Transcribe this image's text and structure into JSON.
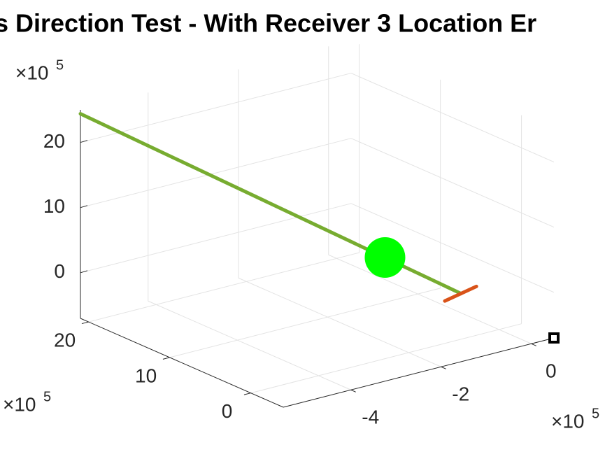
{
  "chart_data": {
    "type": "line3d",
    "title": "s Direction Test - With Receiver 3 Location Er",
    "xlim": [
      -5.5,
      0.5
    ],
    "xticks": [
      -4,
      -2,
      0
    ],
    "ylim": [
      -4,
      21
    ],
    "yticks": [
      0,
      10,
      20
    ],
    "zlim": [
      -7,
      25
    ],
    "zticks": [
      0,
      10,
      20
    ],
    "x_multiplier": {
      "base": "×10",
      "power": "5"
    },
    "y_multiplier": {
      "base": "×10",
      "power": "5"
    },
    "z_multiplier": {
      "base": "×10",
      "power": "5"
    },
    "grid": true,
    "series": [
      {
        "color": "#77ac30",
        "marker": "none",
        "x": [
          -5.5,
          -0.84
        ],
        "y": [
          21,
          0
        ],
        "z": [
          24.4,
          0
        ]
      },
      {
        "color": "#d95319",
        "marker": "none",
        "x": [
          -1.2,
          -0.5
        ],
        "y": [
          0,
          0
        ],
        "z": [
          -0.5,
          0.5
        ]
      },
      {
        "color": "#00ff00",
        "marker": "circle",
        "size": 58,
        "x": [
          -1.77
        ],
        "y": [
          4.2
        ],
        "z": [
          4.9
        ]
      },
      {
        "color": "#000000",
        "marker": "square",
        "size": 12,
        "x": [
          0.5
        ],
        "y": [
          -4
        ],
        "z": [
          -7
        ]
      }
    ]
  }
}
